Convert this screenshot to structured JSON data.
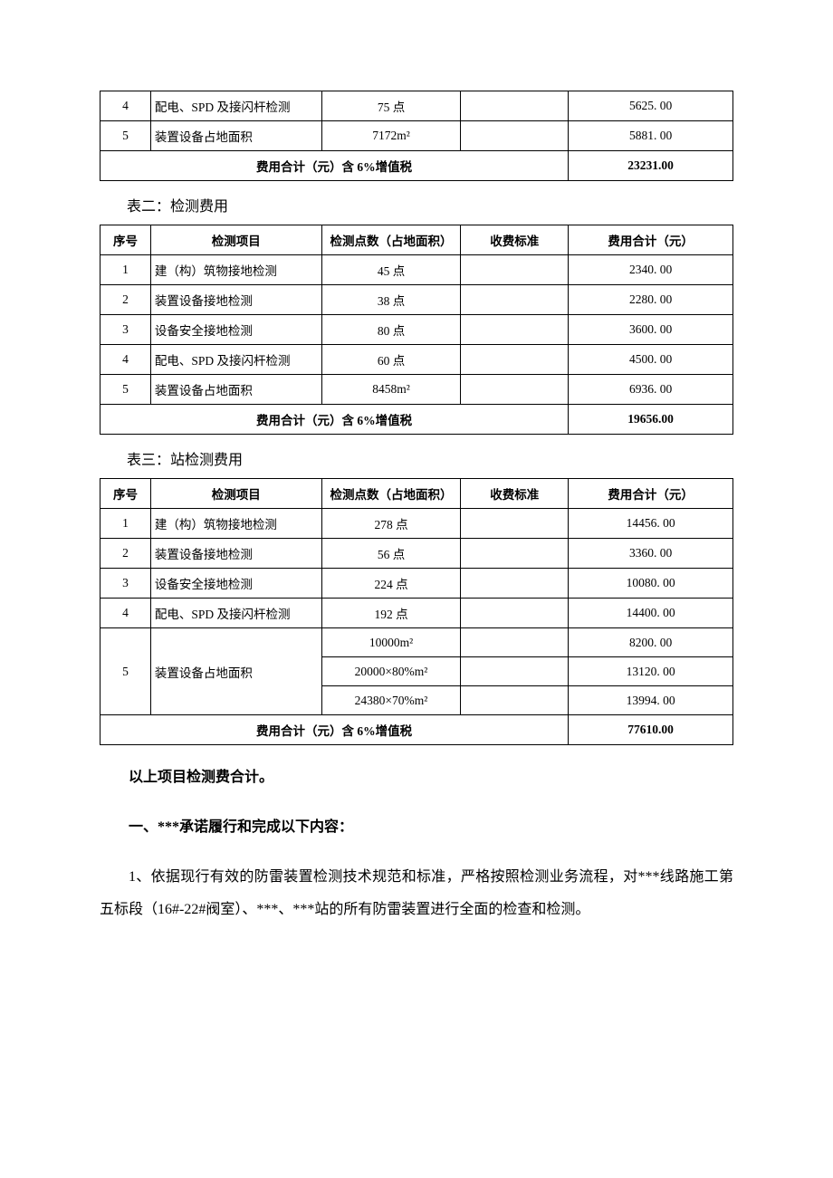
{
  "table0": {
    "rows": [
      {
        "seq": "4",
        "item": "配电、SPD 及接闪杆检测",
        "points": "75 点",
        "std": "",
        "total": "5625. 00"
      },
      {
        "seq": "5",
        "item": "装置设备占地面积",
        "points": "7172m²",
        "std": "",
        "total": "5881. 00"
      }
    ],
    "total_label": "费用合计（元）含 6%增值税",
    "total_value": "23231.00"
  },
  "caption2": "表二：检测费用",
  "table2": {
    "headers": {
      "seq": "序号",
      "item": "检测项目",
      "points": "检测点数（占地面积）",
      "std": "收费标准",
      "total": "费用合计（元）"
    },
    "rows": [
      {
        "seq": "1",
        "item": "建（构）筑物接地检测",
        "points": "45 点",
        "std": "",
        "total": "2340. 00"
      },
      {
        "seq": "2",
        "item": "装置设备接地检测",
        "points": "38 点",
        "std": "",
        "total": "2280. 00"
      },
      {
        "seq": "3",
        "item": "设备安全接地检测",
        "points": "80 点",
        "std": "",
        "total": "3600. 00"
      },
      {
        "seq": "4",
        "item": "配电、SPD 及接闪杆检测",
        "points": "60 点",
        "std": "",
        "total": "4500. 00"
      },
      {
        "seq": "5",
        "item": "装置设备占地面积",
        "points": "8458m²",
        "std": "",
        "total": "6936. 00"
      }
    ],
    "total_label": "费用合计（元）含 6%增值税",
    "total_value": "19656.00"
  },
  "caption3": "表三：站检测费用",
  "table3": {
    "headers": {
      "seq": "序号",
      "item": "检测项目",
      "points": "检测点数（占地面积）",
      "std": "收费标准",
      "total": "费用合计（元）"
    },
    "rows": [
      {
        "seq": "1",
        "item": "建（构）筑物接地检测",
        "points": "278 点",
        "std": "",
        "total": "14456. 00"
      },
      {
        "seq": "2",
        "item": "装置设备接地检测",
        "points": "56 点",
        "std": "",
        "total": "3360. 00"
      },
      {
        "seq": "3",
        "item": "设备安全接地检测",
        "points": "224 点",
        "std": "",
        "total": "10080. 00"
      },
      {
        "seq": "4",
        "item": "配电、SPD 及接闪杆检测",
        "points": "192 点",
        "std": "",
        "total": "14400. 00"
      }
    ],
    "row5": {
      "seq": "5",
      "item": "装置设备占地面积",
      "sub": [
        {
          "points": "10000m²",
          "std": "",
          "total": "8200. 00"
        },
        {
          "points": "20000×80%m²",
          "std": "",
          "total": "13120. 00"
        },
        {
          "points": "24380×70%m²",
          "std": "",
          "total": "13994. 00"
        }
      ]
    },
    "total_label": "费用合计（元）含 6%增值税",
    "total_value": "77610.00"
  },
  "para1": "以上项目检测费合计。",
  "heading1": "一、***承诺履行和完成以下内容：",
  "para2": "1、依据现行有效的防雷装置检测技术规范和标准，严格按照检测业务流程，对***线路施工第五标段（16#-22#阀室）、***、***站的所有防雷装置进行全面的检查和检测。"
}
